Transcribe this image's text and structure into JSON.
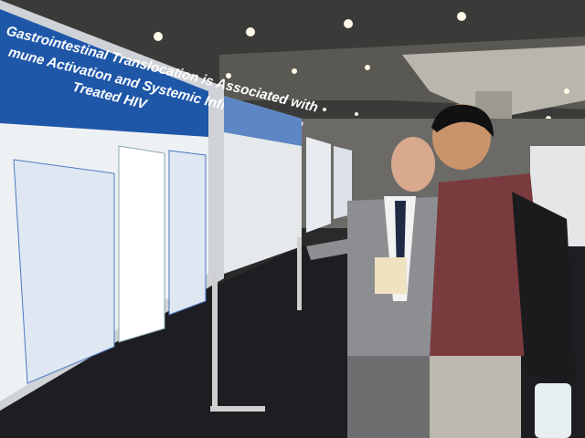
{
  "poster": {
    "title_lines": [
      "Gastrointestinal Translocation is Associated with",
      "mune Activation and Systemic Inflammation in",
      "Treated HIV"
    ]
  }
}
